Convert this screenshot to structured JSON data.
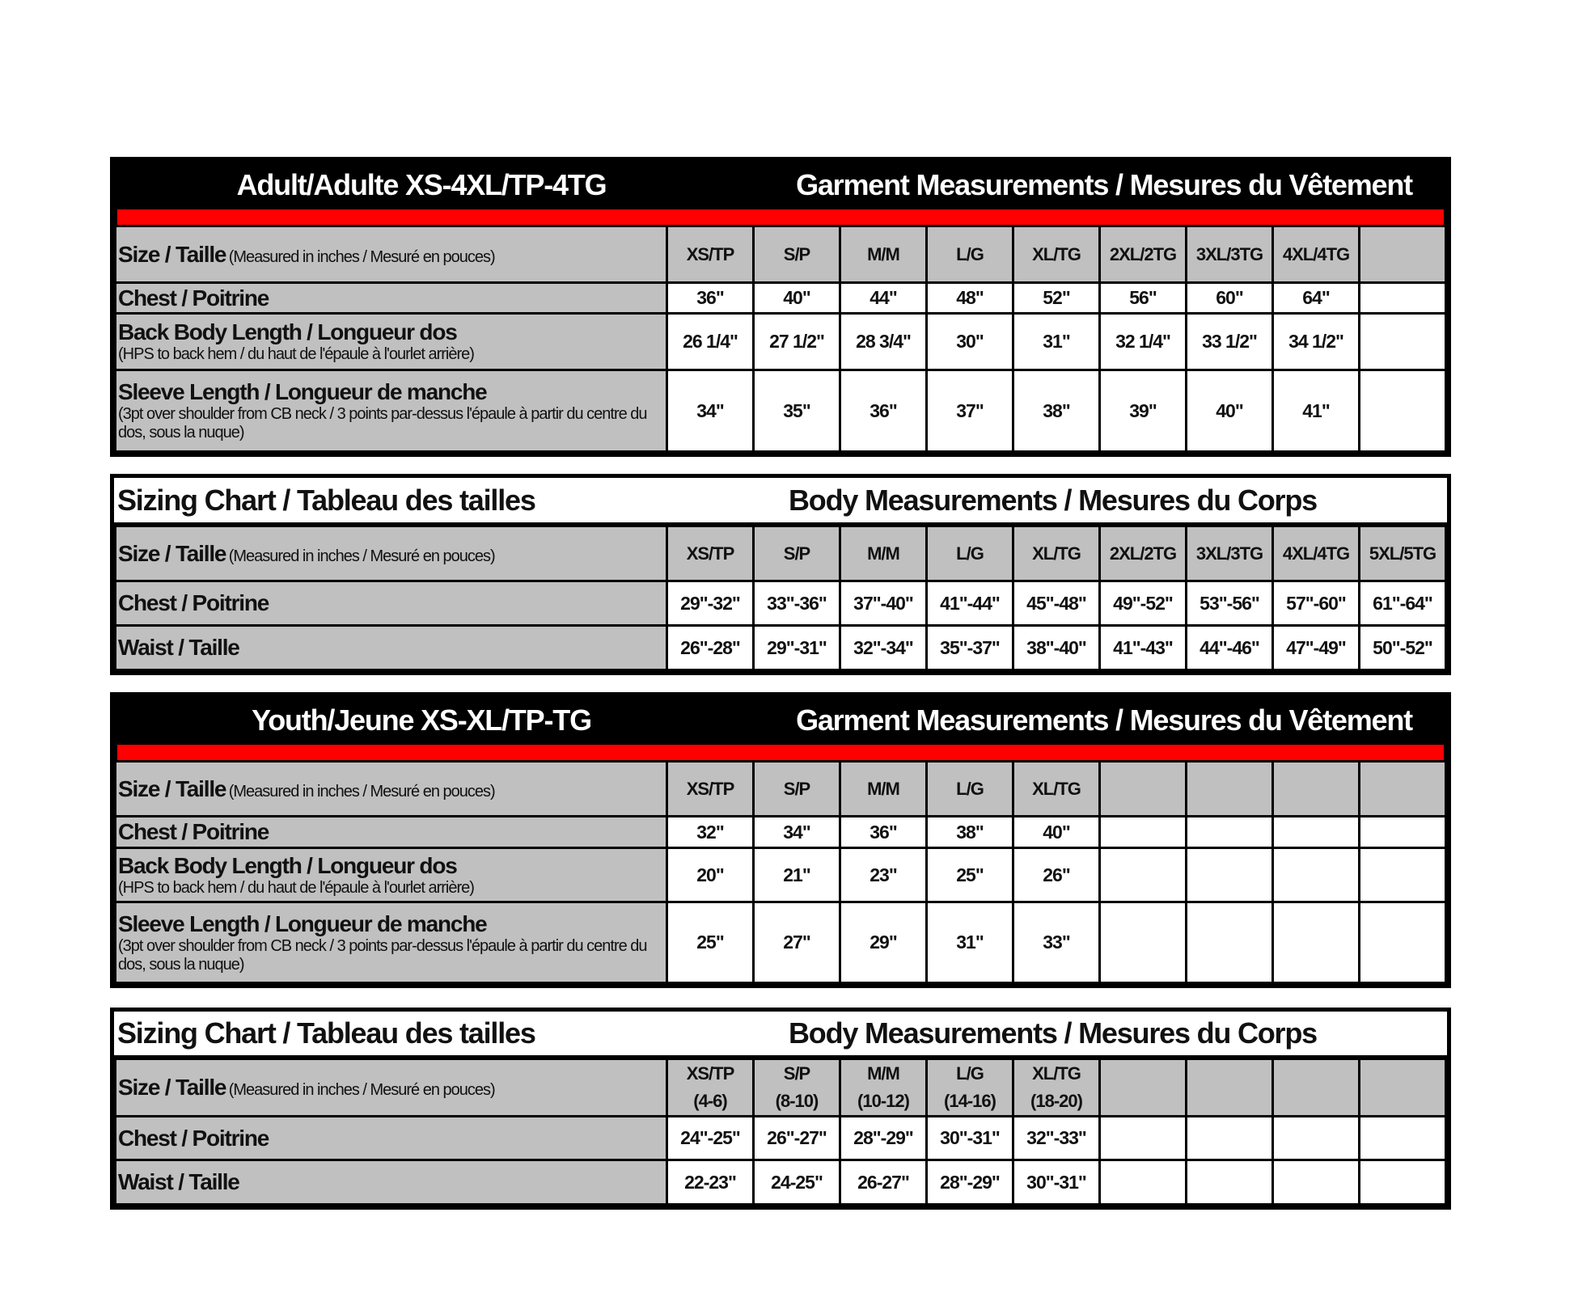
{
  "colors": {
    "header_bg": "#000000",
    "accent_bar": "#ff0000",
    "label_bg": "#c0c0c0",
    "cell_bg": "#ffffff"
  },
  "tables": [
    {
      "style": "black",
      "title": "Adult/Adulte XS-4XL/TP-4TG",
      "subtitle": "Garment Measurements / Mesures du Vêtement",
      "size_row": {
        "label": "Size / Taille",
        "note": "(Measured in inches / Mesuré en pouces)",
        "values": [
          "XS/TP",
          "S/P",
          "M/M",
          "L/G",
          "XL/TG",
          "2XL/2TG",
          "3XL/3TG",
          "4XL/4TG",
          ""
        ]
      },
      "rows": [
        {
          "label": "Chest / Poitrine",
          "note": "",
          "values": [
            "36\"",
            "40\"",
            "44\"",
            "48\"",
            "52\"",
            "56\"",
            "60\"",
            "64\"",
            ""
          ]
        },
        {
          "label": "Back Body Length / Longueur dos",
          "note": "(HPS to back hem  / du haut de l'épaule à l'ourlet arrière)",
          "values": [
            "26 1/4\"",
            "27 1/2\"",
            "28 3/4\"",
            "30\"",
            "31\"",
            "32 1/4\"",
            "33 1/2\"",
            "34 1/2\"",
            ""
          ]
        },
        {
          "label": "Sleeve Length / Longueur de manche",
          "note": "(3pt over shoulder from CB neck / 3 points par-dessus l'épaule à partir du centre du dos, sous la nuque)",
          "values": [
            "34\"",
            "35\"",
            "36\"",
            "37\"",
            "38\"",
            "39\"",
            "40\"",
            "41\"",
            ""
          ]
        }
      ]
    },
    {
      "style": "white",
      "title": "Sizing Chart / Tableau des tailles",
      "subtitle": "Body Measurements / Mesures du Corps",
      "size_row": {
        "label": "Size / Taille",
        "note": "(Measured in inches / Mesuré en pouces)",
        "values": [
          "XS/TP",
          "S/P",
          "M/M",
          "L/G",
          "XL/TG",
          "2XL/2TG",
          "3XL/3TG",
          "4XL/4TG",
          "5XL/5TG"
        ]
      },
      "rows": [
        {
          "label": "Chest / Poitrine",
          "note": "",
          "values": [
            "29\"-32\"",
            "33\"-36\"",
            "37\"-40\"",
            "41\"-44\"",
            "45\"-48\"",
            "49\"-52\"",
            "53\"-56\"",
            "57\"-60\"",
            "61\"-64\""
          ]
        },
        {
          "label": "Waist / Taille",
          "note": "",
          "values": [
            "26\"-28\"",
            "29\"-31\"",
            "32\"-34\"",
            "35\"-37\"",
            "38\"-40\"",
            "41\"-43\"",
            "44\"-46\"",
            "47\"-49\"",
            "50\"-52\""
          ]
        }
      ]
    },
    {
      "style": "black",
      "title": "Youth/Jeune XS-XL/TP-TG",
      "subtitle": "Garment Measurements / Mesures du Vêtement",
      "size_row": {
        "label": "Size / Taille",
        "note": "(Measured in inches / Mesuré en pouces)",
        "values": [
          "XS/TP",
          "S/P",
          "M/M",
          "L/G",
          "XL/TG",
          "",
          "",
          "",
          ""
        ]
      },
      "rows": [
        {
          "label": "Chest / Poitrine",
          "note": "",
          "values": [
            "32\"",
            "34\"",
            "36\"",
            "38\"",
            "40\"",
            "",
            "",
            "",
            ""
          ]
        },
        {
          "label": "Back Body Length / Longueur dos",
          "note": "(HPS to back hem  / du haut de l'épaule à l'ourlet arrière)",
          "values": [
            "20\"",
            "21\"",
            "23\"",
            "25\"",
            "26\"",
            "",
            "",
            "",
            ""
          ]
        },
        {
          "label": "Sleeve Length / Longueur de manche",
          "note": "(3pt over shoulder from CB neck / 3 points par-dessus l'épaule à partir du centre du dos, sous la nuque)",
          "values": [
            "25\"",
            "27\"",
            "29\"",
            "31\"",
            "33\"",
            "",
            "",
            "",
            ""
          ]
        }
      ]
    },
    {
      "style": "white",
      "title": "Sizing Chart / Tableau des tailles",
      "subtitle": "Body Measurements / Mesures du Corps",
      "size_row": {
        "label": "Size / Taille",
        "note": "(Measured in inches / Mesuré en pouces)",
        "values": [
          "XS/TP\n(4-6)",
          "S/P\n(8-10)",
          "M/M\n(10-12)",
          "L/G\n(14-16)",
          "XL/TG\n(18-20)",
          "",
          "",
          "",
          ""
        ]
      },
      "rows": [
        {
          "label": "Chest / Poitrine",
          "note": "",
          "values": [
            "24\"-25\"",
            "26\"-27\"",
            "28\"-29\"",
            "30\"-31\"",
            "32\"-33\"",
            "",
            "",
            "",
            ""
          ]
        },
        {
          "label": "Waist / Taille",
          "note": "",
          "values": [
            "22-23\"",
            "24-25\"",
            "26-27\"",
            "28\"-29\"",
            "30\"-31\"",
            "",
            "",
            "",
            ""
          ]
        }
      ]
    }
  ]
}
